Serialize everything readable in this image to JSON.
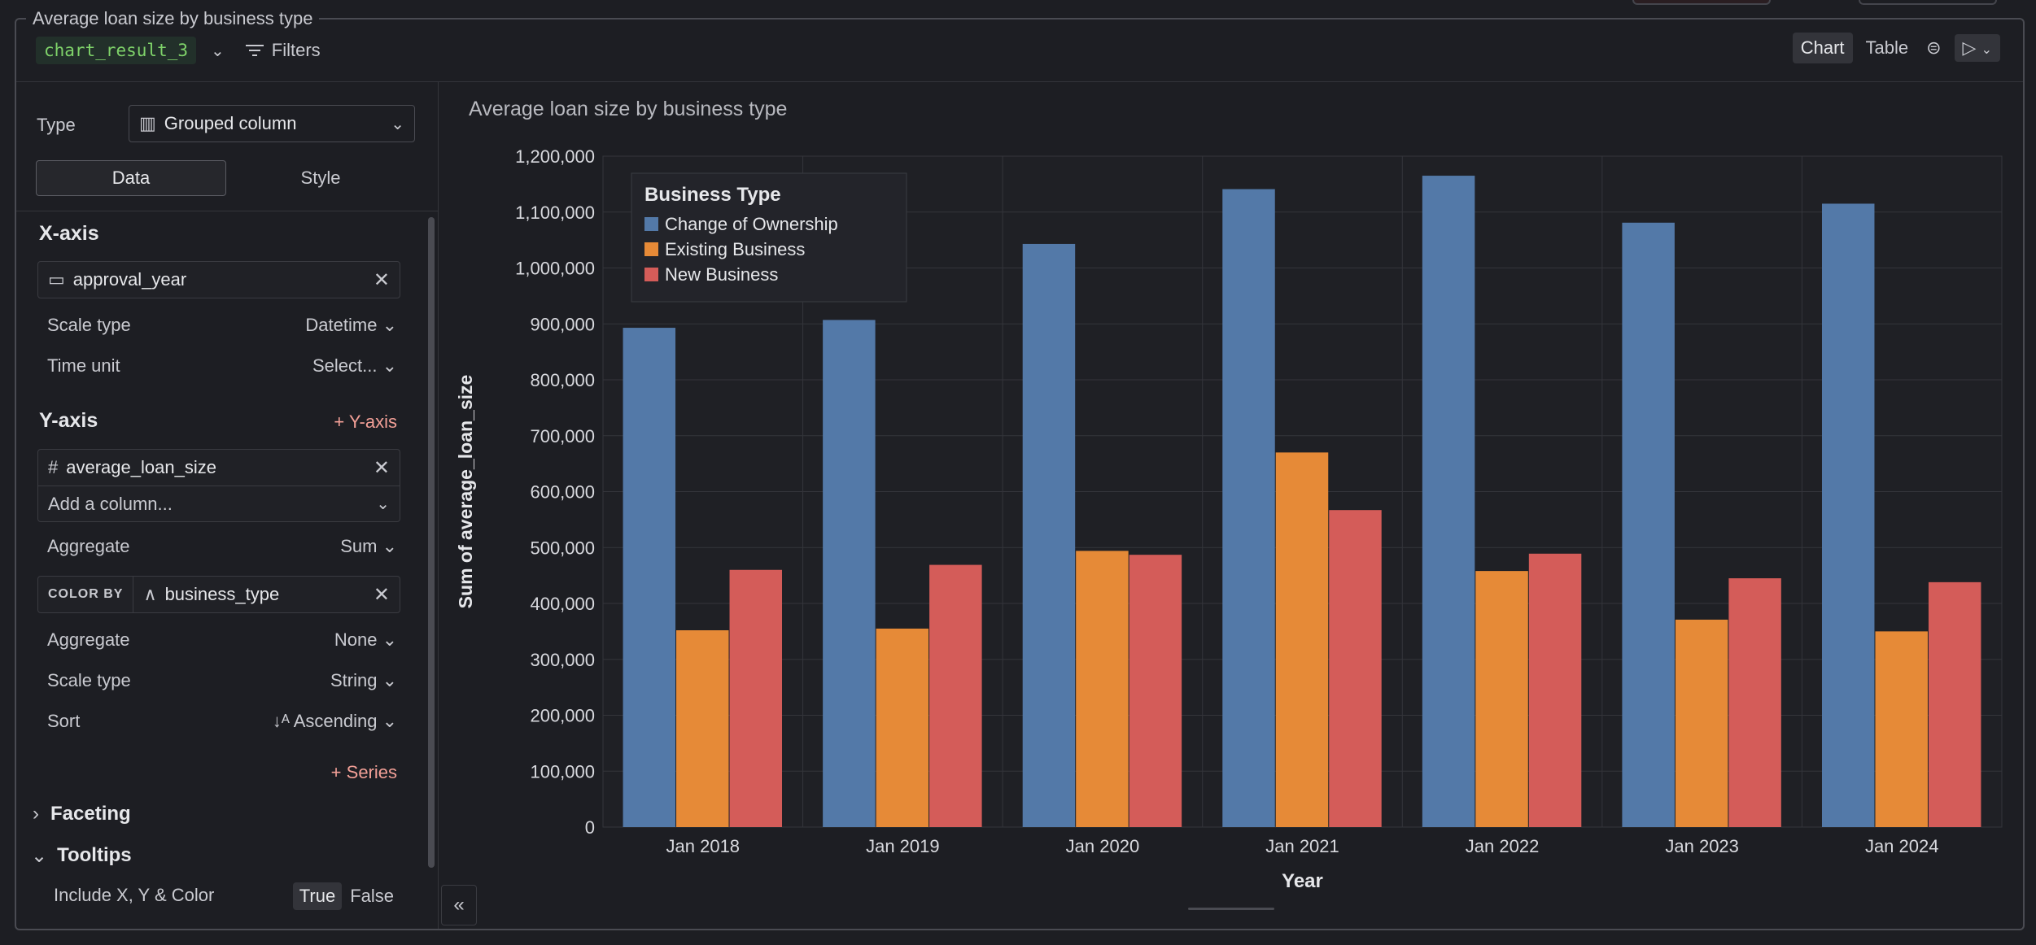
{
  "frame_title": "Average loan size by business type",
  "header": {
    "result_name": "chart_result_3",
    "filters_label": "Filters",
    "view_chart": "Chart",
    "view_table": "Table"
  },
  "sidebar": {
    "type_label": "Type",
    "type_value": "Grouped column",
    "tab_data": "Data",
    "tab_style": "Style",
    "xaxis": {
      "title": "X-axis",
      "column": "approval_year",
      "scale_type_label": "Scale type",
      "scale_type_value": "Datetime",
      "time_unit_label": "Time unit",
      "time_unit_value": "Select..."
    },
    "yaxis": {
      "title": "Y-axis",
      "add_label": "Y-axis",
      "column": "average_loan_size",
      "add_column_placeholder": "Add a column...",
      "aggregate_label": "Aggregate",
      "aggregate_value": "Sum"
    },
    "colorby": {
      "tag": "COLOR BY",
      "column": "business_type",
      "aggregate_label": "Aggregate",
      "aggregate_value": "None",
      "scale_type_label": "Scale type",
      "scale_type_value": "String",
      "sort_label": "Sort",
      "sort_value": "Ascending"
    },
    "add_series_label": "Series",
    "faceting_label": "Faceting",
    "tooltips_label": "Tooltips",
    "include_label": "Include X, Y & Color",
    "true_label": "True",
    "false_label": "False"
  },
  "colors": {
    "series": [
      "#5379a8",
      "#e68a37",
      "#d45c59"
    ],
    "grid": "#34353b"
  },
  "chart_data": {
    "type": "bar",
    "title": "Average loan size by business type",
    "xlabel": "Year",
    "ylabel": "Sum of average_loan_size",
    "categories": [
      "Jan 2018",
      "Jan 2019",
      "Jan 2020",
      "Jan 2021",
      "Jan 2022",
      "Jan 2023",
      "Jan 2024"
    ],
    "ylim": [
      0,
      1200000
    ],
    "yticks": [
      "0",
      "100,000",
      "200,000",
      "300,000",
      "400,000",
      "500,000",
      "600,000",
      "700,000",
      "800,000",
      "900,000",
      "1,000,000",
      "1,100,000",
      "1,200,000"
    ],
    "legend_title": "Business Type",
    "legend_position": "top-left",
    "grid": true,
    "series": [
      {
        "name": "Change of Ownership",
        "values": [
          893000,
          907000,
          1043000,
          1141000,
          1165000,
          1081000,
          1115000
        ]
      },
      {
        "name": "Existing Business",
        "values": [
          352000,
          355000,
          494000,
          670000,
          458000,
          371000,
          350000
        ]
      },
      {
        "name": "New Business",
        "values": [
          460000,
          469000,
          487000,
          567000,
          489000,
          445000,
          438000
        ]
      }
    ]
  }
}
